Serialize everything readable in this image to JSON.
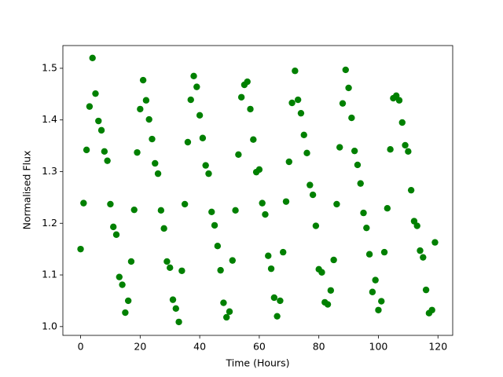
{
  "chart_data": {
    "type": "scatter",
    "xlabel": "Time (Hours)",
    "ylabel": "Normalised Flux",
    "color": "#008000",
    "x": [
      0,
      1,
      2,
      3,
      4,
      5,
      6,
      7,
      8,
      9,
      10,
      11,
      12,
      13,
      14,
      15,
      16,
      17,
      18,
      19,
      20,
      21,
      22,
      23,
      24,
      25,
      26,
      27,
      28,
      29,
      30,
      31,
      32,
      33,
      34,
      35,
      36,
      37,
      38,
      39,
      40,
      41,
      42,
      43,
      44,
      45,
      46,
      47,
      48,
      49,
      50,
      51,
      52,
      53,
      54,
      55,
      56,
      57,
      58,
      59,
      60,
      61,
      62,
      63,
      64,
      65,
      66,
      67,
      68,
      69,
      70,
      71,
      72,
      73,
      74,
      75,
      76,
      77,
      78,
      79,
      80,
      81,
      82,
      83,
      84,
      85,
      86,
      87,
      88,
      89,
      90,
      91,
      92,
      93,
      94,
      95,
      96,
      97,
      98,
      99,
      100,
      101,
      102,
      103,
      104,
      105,
      106,
      107,
      108,
      109,
      110,
      111,
      112,
      113,
      114,
      115,
      116,
      117,
      118,
      119
    ],
    "values": [
      1.15,
      1.239,
      1.342,
      1.426,
      1.52,
      1.451,
      1.398,
      1.38,
      1.339,
      1.321,
      1.237,
      1.193,
      1.178,
      1.096,
      1.081,
      1.027,
      1.05,
      1.126,
      1.226,
      1.337,
      1.421,
      1.477,
      1.438,
      1.401,
      1.363,
      1.316,
      1.296,
      1.225,
      1.19,
      1.126,
      1.114,
      1.052,
      1.035,
      1.009,
      1.108,
      1.237,
      1.357,
      1.439,
      1.485,
      1.464,
      1.409,
      1.365,
      1.312,
      1.296,
      1.222,
      1.196,
      1.156,
      1.109,
      1.046,
      1.018,
      1.029,
      1.128,
      1.225,
      1.333,
      1.444,
      1.468,
      1.474,
      1.421,
      1.362,
      1.299,
      1.304,
      1.239,
      1.217,
      1.137,
      1.112,
      1.056,
      1.02,
      1.05,
      1.144,
      1.242,
      1.319,
      1.433,
      1.495,
      1.439,
      1.413,
      1.371,
      1.336,
      1.274,
      1.255,
      1.195,
      1.111,
      1.105,
      1.047,
      1.043,
      1.07,
      1.129,
      1.237,
      1.347,
      1.432,
      1.497,
      1.462,
      1.404,
      1.34,
      1.313,
      1.277,
      1.22,
      1.191,
      1.14,
      1.067,
      1.09,
      1.032,
      1.049,
      1.144,
      1.229,
      1.343,
      1.442,
      1.447,
      1.438,
      1.395,
      1.351,
      1.339,
      1.264,
      1.204,
      1.195,
      1.147,
      1.134,
      1.071,
      1.026,
      1.032,
      1.163
    ],
    "xlim": [
      -5.95,
      124.95
    ],
    "xticks": [
      0,
      20,
      40,
      60,
      80,
      100,
      120
    ],
    "ylim": [
      0.983,
      1.544
    ],
    "yticks": [
      {
        "value": 1.0,
        "label": "1.0"
      },
      1.1,
      1.2,
      1.3,
      1.4,
      1.5
    ]
  }
}
